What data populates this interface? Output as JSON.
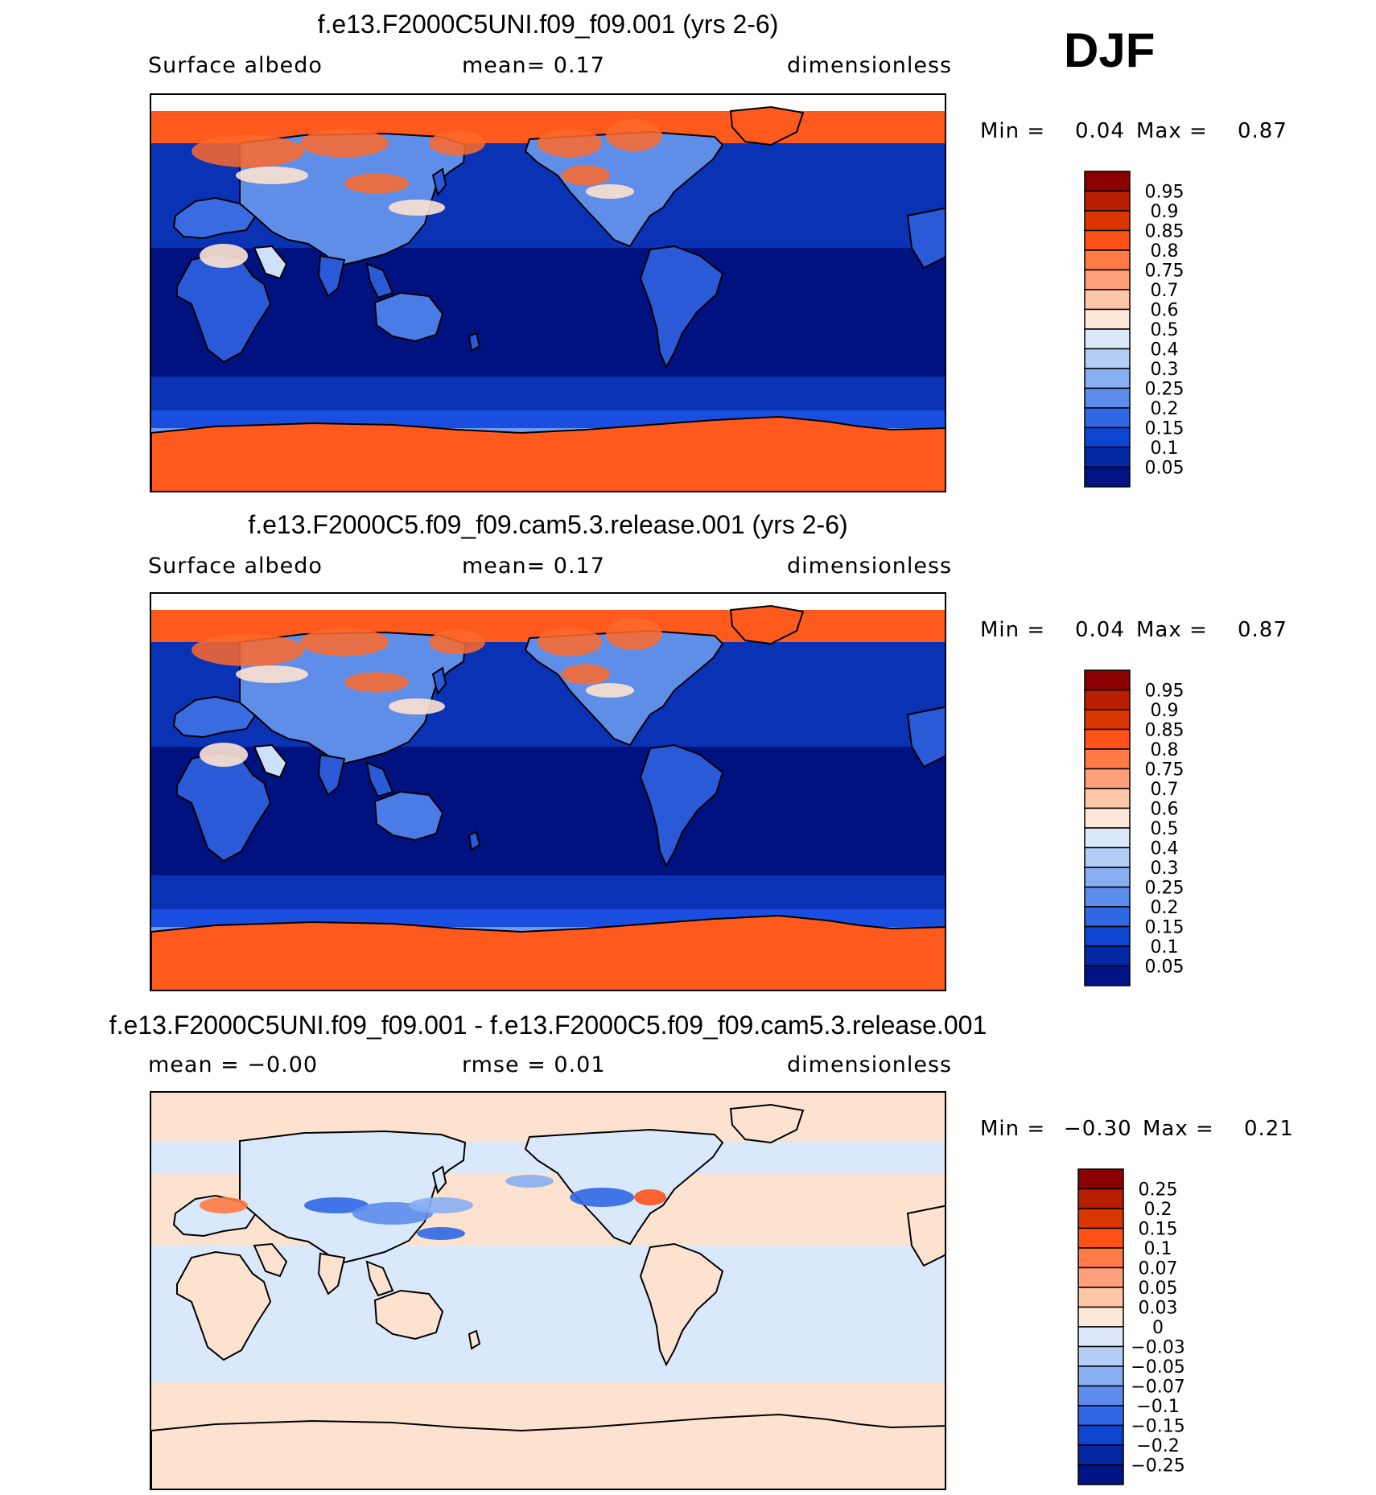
{
  "season": "DJF",
  "colors": {
    "map_ocean_deep": "#00127f",
    "map_ocean": "#0a32b4",
    "map_land_blue": "#2a5ad8",
    "map_ice": "#ff5a1e",
    "diff_pos": "#fde3cf",
    "diff_neg": "#d9e8fb"
  },
  "panels": [
    {
      "title": "f.e13.F2000C5UNI.f09_f09.001 (yrs 2-6)",
      "left_label": "Surface  albedo",
      "center_label": "mean=    0.17",
      "right_label": "dimensionless",
      "min_label": "Min  =",
      "min_value": "0.04",
      "max_label": "Max  =",
      "max_value": "0.87",
      "colorbar": {
        "labels": [
          "0.95",
          "0.9",
          "0.85",
          "0.8",
          "0.75",
          "0.7",
          "0.6",
          "0.5",
          "0.4",
          "0.3",
          "0.25",
          "0.2",
          "0.15",
          "0.1",
          "0.05"
        ],
        "colors": [
          "#8b0000",
          "#b81e00",
          "#dc3600",
          "#ff5219",
          "#ff7a45",
          "#ffa07a",
          "#ffc7a8",
          "#fde8d8",
          "#dce9fb",
          "#b3cdf7",
          "#88aef2",
          "#5c8cec",
          "#2f67e4",
          "#0d44d0",
          "#0428a3",
          "#001485"
        ]
      }
    },
    {
      "title": "f.e13.F2000C5.f09_f09.cam5.3.release.001 (yrs 2-6)",
      "left_label": "Surface  albedo",
      "center_label": "mean=    0.17",
      "right_label": "dimensionless",
      "min_label": "Min  =",
      "min_value": "0.04",
      "max_label": "Max  =",
      "max_value": "0.87",
      "colorbar": {
        "labels": [
          "0.95",
          "0.9",
          "0.85",
          "0.8",
          "0.75",
          "0.7",
          "0.6",
          "0.5",
          "0.4",
          "0.3",
          "0.25",
          "0.2",
          "0.15",
          "0.1",
          "0.05"
        ],
        "colors": [
          "#8b0000",
          "#b81e00",
          "#dc3600",
          "#ff5219",
          "#ff7a45",
          "#ffa07a",
          "#ffc7a8",
          "#fde8d8",
          "#dce9fb",
          "#b3cdf7",
          "#88aef2",
          "#5c8cec",
          "#2f67e4",
          "#0d44d0",
          "#0428a3",
          "#001485"
        ]
      }
    },
    {
      "title": "f.e13.F2000C5UNI.f09_f09.001 - f.e13.F2000C5.f09_f09.cam5.3.release.001",
      "left_label": "mean  =   −0.00",
      "center_label": "rmse  =    0.01",
      "right_label": "dimensionless",
      "min_label": "Min  =",
      "min_value": "−0.30",
      "max_label": "Max  =",
      "max_value": "0.21",
      "colorbar": {
        "labels": [
          "0.25",
          "0.2",
          "0.15",
          "0.1",
          "0.07",
          "0.05",
          "0.03",
          "0",
          "−0.03",
          "−0.05",
          "−0.07",
          "−0.1",
          "−0.15",
          "−0.2",
          "−0.25"
        ],
        "colors": [
          "#8b0000",
          "#b81e00",
          "#dc3600",
          "#ff5219",
          "#ff7a45",
          "#ffa07a",
          "#ffc7a8",
          "#fde8d8",
          "#dce9fb",
          "#b3cdf7",
          "#88aef2",
          "#5c8cec",
          "#2f67e4",
          "#0d44d0",
          "#0428a3",
          "#001485"
        ]
      }
    }
  ]
}
